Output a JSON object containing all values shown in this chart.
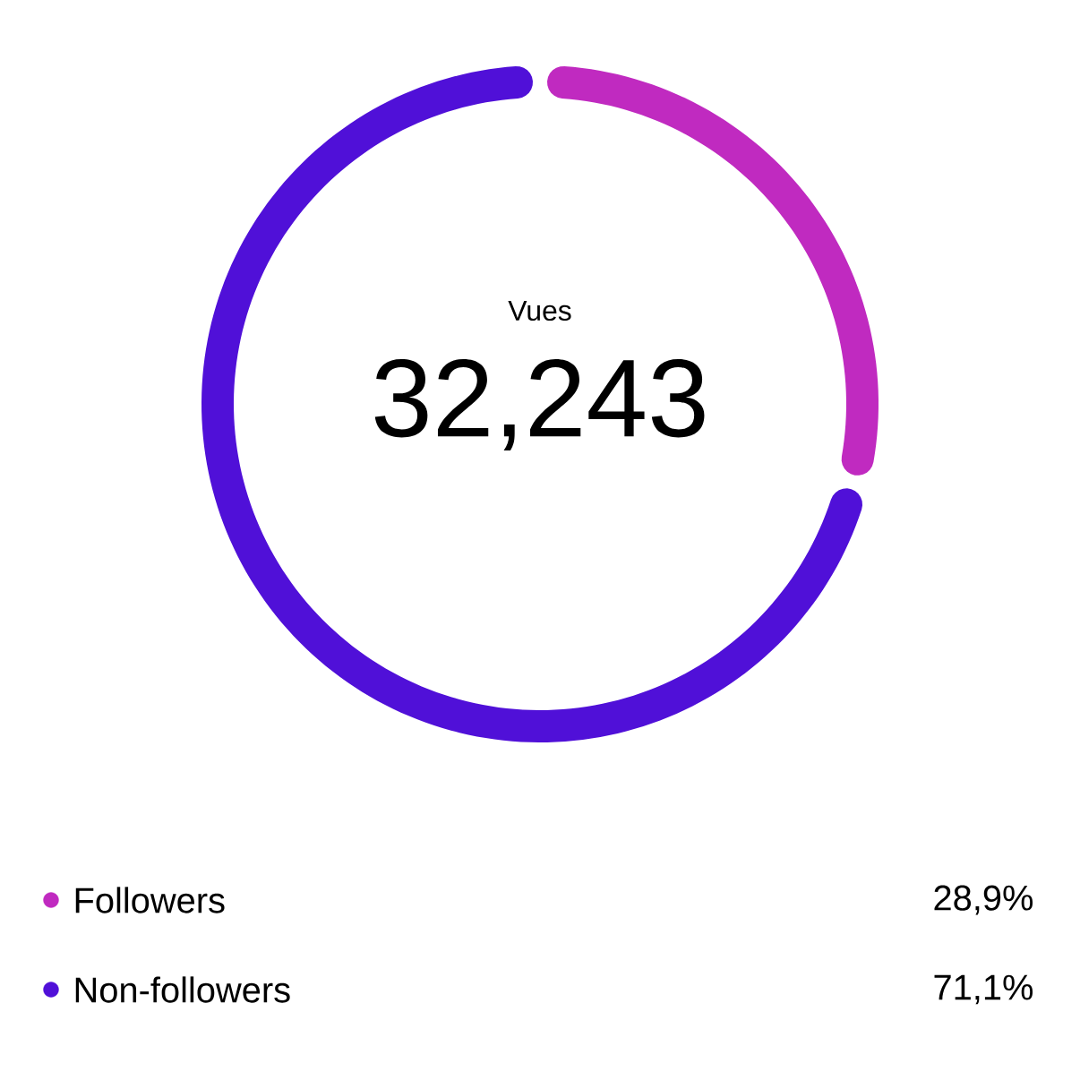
{
  "chart_data": {
    "type": "donut",
    "title": "Vues",
    "annotations": [
      "32,243"
    ],
    "categories": [
      "Followers",
      "Non-followers"
    ],
    "values": [
      28.9,
      71.1
    ],
    "colors": [
      "#c02ac0",
      "#5010d8"
    ],
    "value_labels": [
      "28,9%",
      "71,1%"
    ],
    "legend": "bottom"
  }
}
